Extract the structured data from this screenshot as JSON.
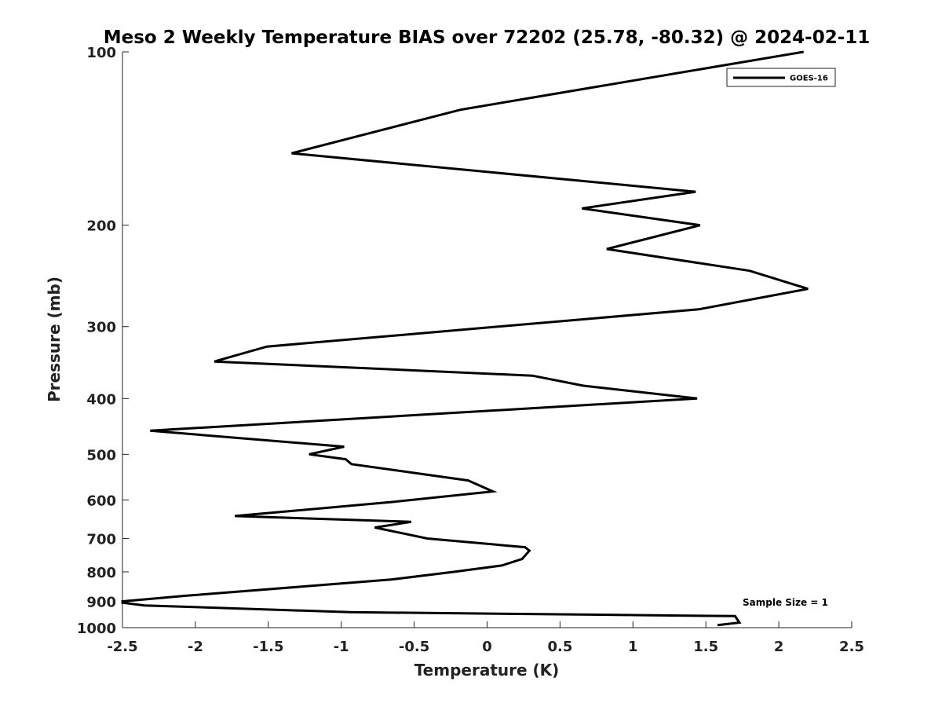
{
  "chart_data": {
    "type": "line",
    "title": "Meso 2 Weekly Temperature BIAS over 72202 (25.78, -80.32) @ 2024-02-11",
    "xlabel": "Temperature (K)",
    "ylabel": "Pressure (mb)",
    "xlim": [
      -2.5,
      2.5
    ],
    "ylim": [
      100,
      1000
    ],
    "yscale": "log",
    "y_reversed": true,
    "xticks": [
      -2.5,
      -2,
      -1.5,
      -1,
      -0.5,
      0,
      0.5,
      1,
      1.5,
      2,
      2.5
    ],
    "xtick_labels": [
      "-2.5",
      "-2",
      "-1.5",
      "-1",
      "-0.5",
      "0",
      "0.5",
      "1",
      "1.5",
      "2",
      "2.5"
    ],
    "yticks": [
      100,
      200,
      300,
      400,
      500,
      600,
      700,
      800,
      900,
      1000
    ],
    "ytick_labels": [
      "100",
      "200",
      "300",
      "400",
      "500",
      "600",
      "700",
      "800",
      "900",
      "1000"
    ],
    "grid": false,
    "legend": {
      "position": "top-right",
      "entries": [
        "GOES-16"
      ]
    },
    "annotation": "Sample Size = 1",
    "series": [
      {
        "name": "GOES-16",
        "color": "#000000",
        "x": [
          2.17,
          -0.18,
          -1.34,
          1.43,
          0.65,
          1.46,
          0.82,
          1.8,
          2.2,
          1.45,
          -0.25,
          -1.51,
          -1.87,
          0.31,
          0.66,
          1.44,
          -2.31,
          -0.98,
          -1.22,
          -0.97,
          -0.93,
          -0.13,
          0.04,
          -0.65,
          -1.73,
          -0.52,
          -0.77,
          -0.41,
          0.26,
          0.29,
          0.24,
          0.1,
          -0.23,
          -0.66,
          -2.06,
          -2.5,
          -2.5,
          -2.35,
          -0.94,
          1.7,
          1.73,
          1.58
        ],
        "y": [
          100,
          126,
          150,
          175,
          187,
          200,
          220,
          240,
          258,
          280,
          305,
          325,
          345,
          365,
          380,
          400,
          455,
          485,
          500,
          510,
          520,
          555,
          580,
          605,
          640,
          655,
          670,
          700,
          725,
          735,
          760,
          780,
          800,
          825,
          880,
          900,
          905,
          915,
          940,
          955,
          980,
          990
        ]
      }
    ]
  }
}
